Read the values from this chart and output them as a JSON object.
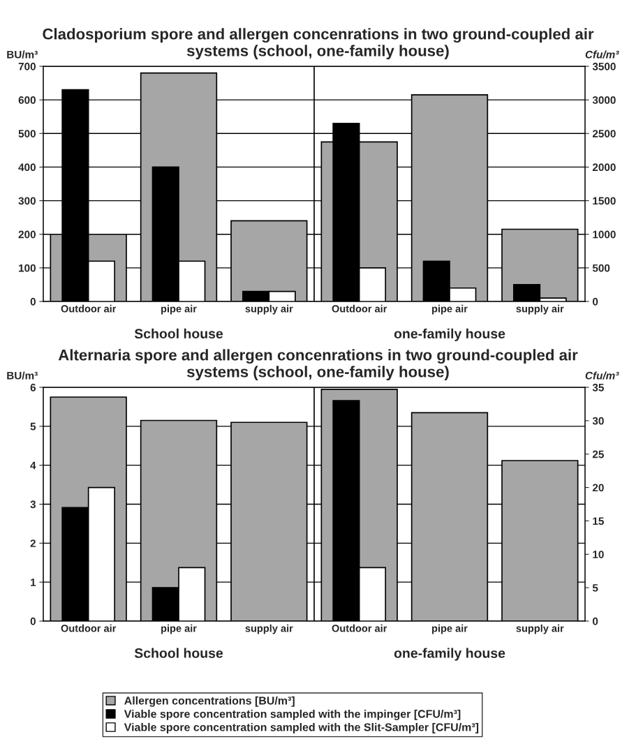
{
  "chart_data": [
    {
      "type": "bar",
      "title": "Cladosporium spore and allergen concenrations in two ground-coupled air systems (school, one-family house)",
      "ylabel": "BU/m³",
      "y2label": "Cfu/m³",
      "categories": [
        "Outdoor air",
        "pipe air",
        "supply air",
        "Outdoor air",
        "pipe air",
        "supply air"
      ],
      "series": [
        {
          "color": "#a6a6a6",
          "values": [
            200,
            680,
            240,
            475,
            615,
            215
          ]
        },
        {
          "color": "#000000",
          "axis": "y2",
          "values": [
            3150,
            2000,
            150,
            2650,
            600,
            250
          ]
        },
        {
          "color": "#ffffff",
          "axis": "y2",
          "values": [
            600,
            600,
            150,
            500,
            200,
            50
          ]
        }
      ],
      "ylim": [
        0,
        700
      ],
      "yticks": [
        0,
        100,
        200,
        300,
        400,
        500,
        600,
        700
      ],
      "y2lim": [
        0,
        3500
      ],
      "y2ticks": [
        0,
        500,
        1000,
        1500,
        2000,
        2500,
        3000,
        3500
      ],
      "grid": "y",
      "annotations": [
        "School house",
        "one-family house"
      ]
    },
    {
      "type": "bar",
      "title": "Alternaria spore and allergen concenrations in two ground-coupled air systems (school, one-family house)",
      "ylabel": "BU/m³",
      "y2label": "Cfu/m³",
      "categories": [
        "Outdoor air",
        "pipe air",
        "supply air",
        "Outdoor air",
        "pipe air",
        "supply air"
      ],
      "series": [
        {
          "name": "Allergen concentrations [BU/m³]",
          "color": "#a6a6a6",
          "values": [
            5.75,
            5.15,
            5.1,
            5.95,
            5.35,
            4.12
          ]
        },
        {
          "name": "Viable spore concentration sampled with the impinger [CFU/m³]",
          "color": "#000000",
          "axis": "y2",
          "values": [
            17,
            5,
            null,
            33,
            null,
            null
          ]
        },
        {
          "name": "Viable spore concentration sampled with the Slit-Sampler [CFU/m³]",
          "color": "#ffffff",
          "axis": "y2",
          "values": [
            20,
            8,
            null,
            8,
            null,
            null
          ]
        }
      ],
      "ylim": [
        0,
        6
      ],
      "yticks": [
        0,
        1,
        2,
        3,
        4,
        5,
        6
      ],
      "y2lim": [
        0,
        35
      ],
      "y2ticks": [
        0,
        5,
        10,
        15,
        20,
        25,
        30,
        35
      ],
      "grid": "y",
      "annotations": [
        "School house",
        "one-family house"
      ],
      "legend": "bottom"
    }
  ]
}
